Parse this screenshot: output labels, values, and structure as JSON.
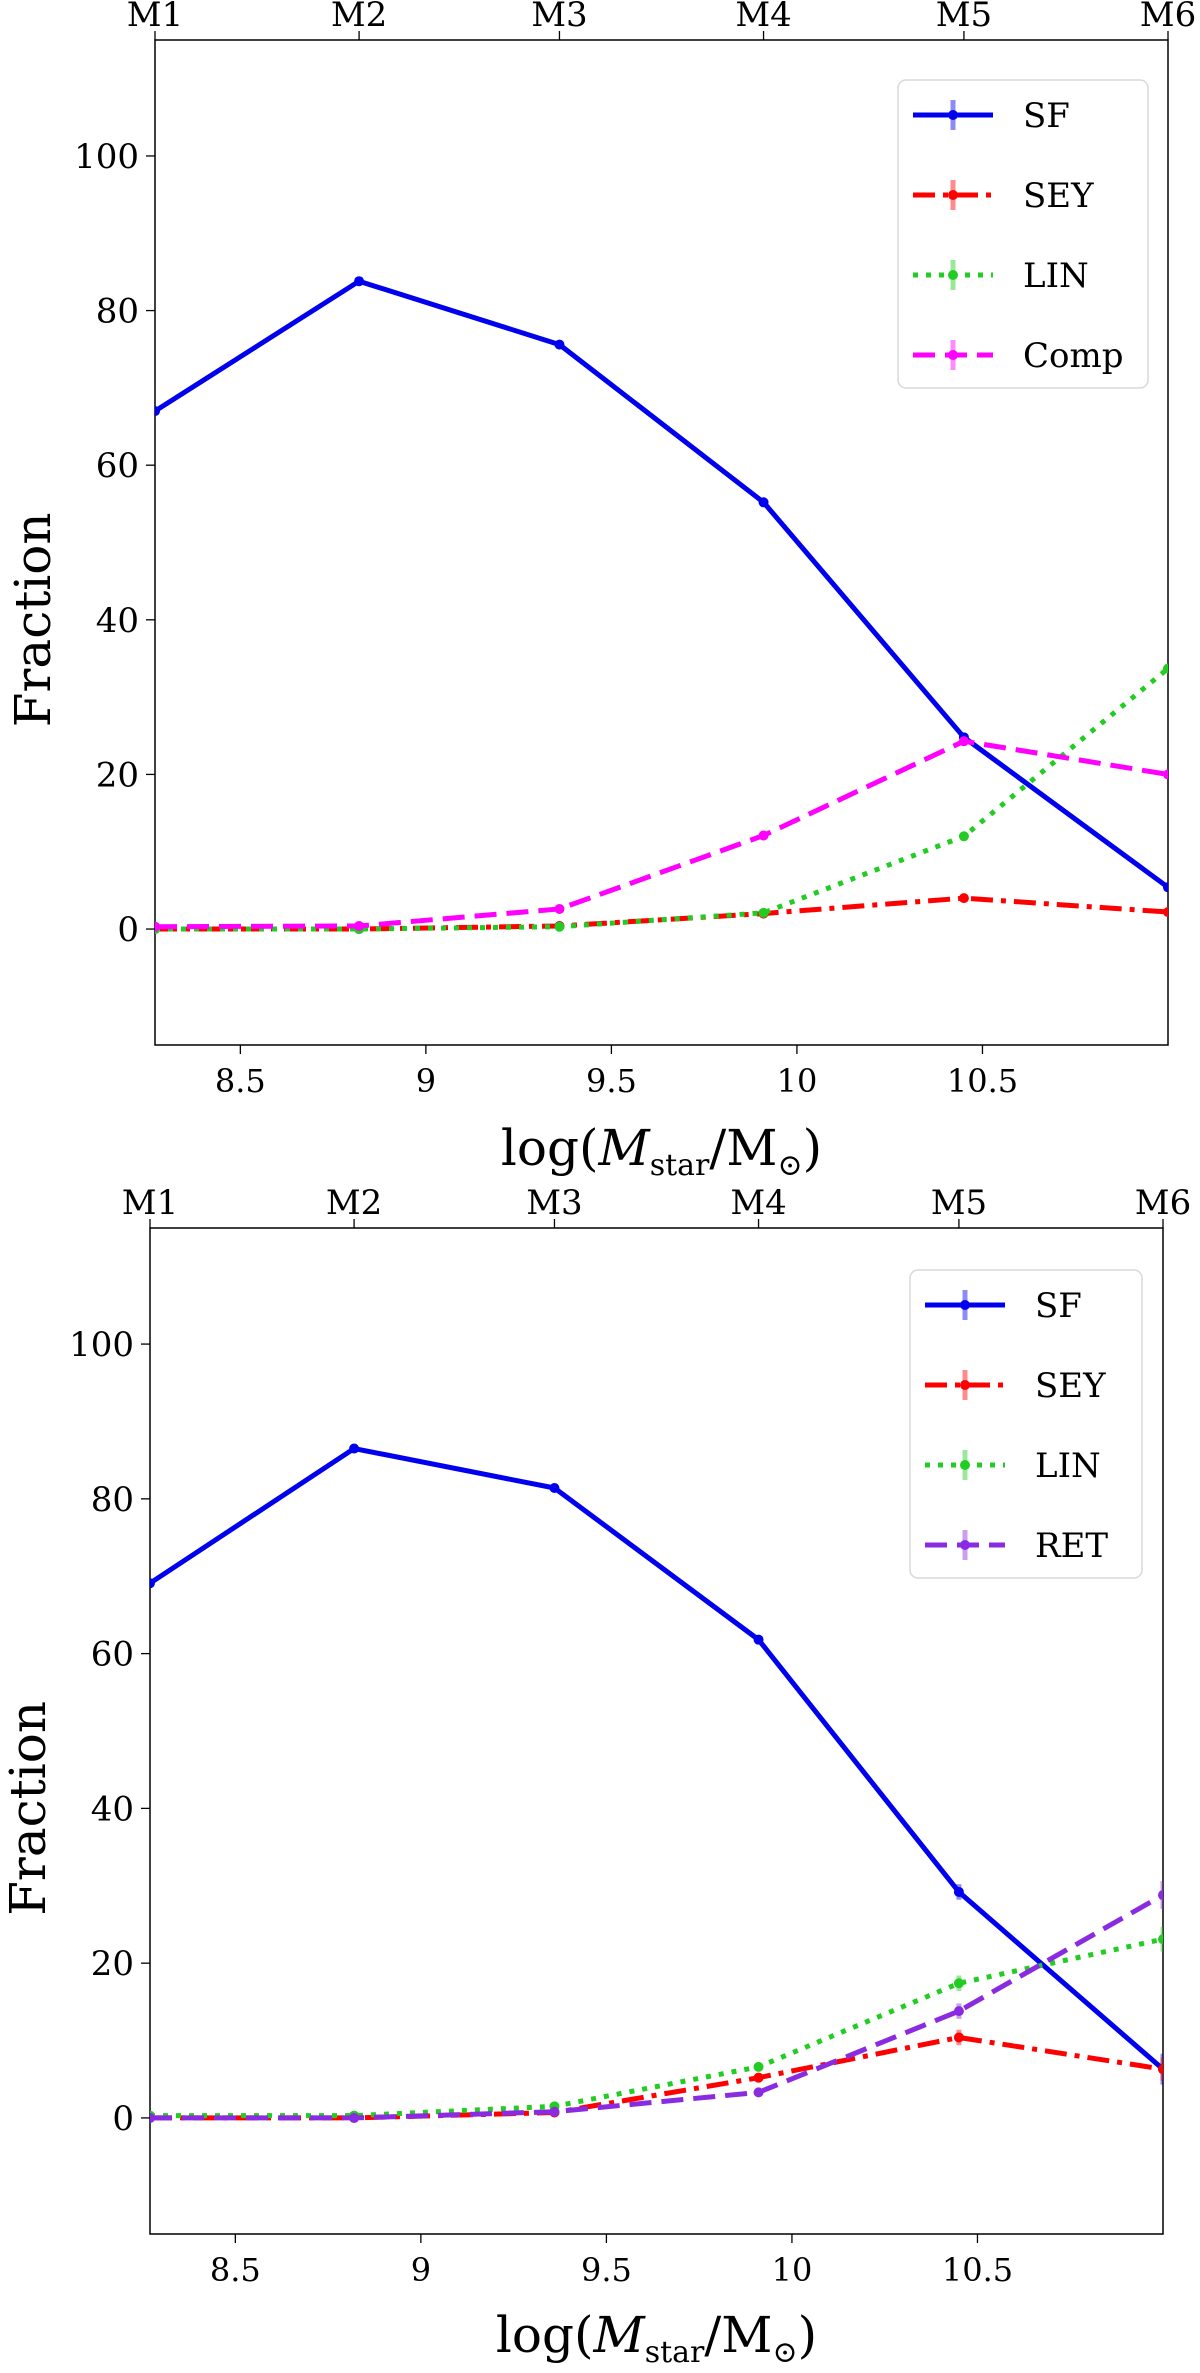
{
  "chart_data": [
    {
      "type": "line",
      "ylabel": "Fraction",
      "xlabel": "log(M_star/M_sun)",
      "xlabel_parts": {
        "prefix": "log(",
        "symbol": "M",
        "sub": "star",
        "slash": "/M",
        "sub2": "⊙",
        "suffix": ")"
      },
      "xlim": [
        8.27,
        11.0
      ],
      "ylim": [
        -15,
        115
      ],
      "x_ticks": [
        8.5,
        9,
        9.5,
        10,
        10.5
      ],
      "x_tick_labels": [
        "8.5",
        "9",
        "9.5",
        "10",
        "10.5"
      ],
      "y_ticks": [
        0,
        20,
        40,
        60,
        80,
        100
      ],
      "y_tick_labels": [
        "0",
        "20",
        "40",
        "60",
        "80",
        "100"
      ],
      "top_ticks": [
        8.27,
        8.82,
        9.36,
        9.91,
        10.45,
        11.0
      ],
      "top_tick_labels": [
        "M1",
        "M2",
        "M3",
        "M4",
        "M5",
        "M6"
      ],
      "x": [
        8.27,
        8.82,
        9.36,
        9.91,
        10.45,
        11.0
      ],
      "legend_position": "upper-right",
      "series": [
        {
          "name": "SF",
          "color": "#0000ee",
          "style": "solid",
          "values": [
            67.0,
            83.8,
            75.6,
            55.2,
            24.8,
            5.4
          ]
        },
        {
          "name": "SEY",
          "color": "#ff0000",
          "style": "dashdot",
          "values": [
            0.0,
            0.0,
            0.4,
            2.0,
            4.0,
            2.2
          ]
        },
        {
          "name": "LIN",
          "color": "#22cc22",
          "style": "dotted",
          "values": [
            0.0,
            0.0,
            0.3,
            2.1,
            12.0,
            33.7
          ]
        },
        {
          "name": "Comp",
          "color": "#ff00ff",
          "style": "dashed",
          "values": [
            0.3,
            0.4,
            2.6,
            12.1,
            24.3,
            20.0
          ]
        }
      ]
    },
    {
      "type": "line",
      "ylabel": "Fraction",
      "xlabel": "log(M_star/M_sun)",
      "xlabel_parts": {
        "prefix": "log(",
        "symbol": "M",
        "sub": "star",
        "slash": "/M",
        "sub2": "⊙",
        "suffix": ")"
      },
      "xlim": [
        8.27,
        11.0
      ],
      "ylim": [
        -15,
        115
      ],
      "x_ticks": [
        8.5,
        9,
        9.5,
        10,
        10.5
      ],
      "x_tick_labels": [
        "8.5",
        "9",
        "9.5",
        "10",
        "10.5"
      ],
      "y_ticks": [
        0,
        20,
        40,
        60,
        80,
        100
      ],
      "y_tick_labels": [
        "0",
        "20",
        "40",
        "60",
        "80",
        "100"
      ],
      "top_ticks": [
        8.27,
        8.82,
        9.36,
        9.91,
        10.45,
        11.0
      ],
      "top_tick_labels": [
        "M1",
        "M2",
        "M3",
        "M4",
        "M5",
        "M6"
      ],
      "x": [
        8.27,
        8.82,
        9.36,
        9.91,
        10.45,
        11.0
      ],
      "legend_position": "upper-right",
      "series": [
        {
          "name": "SF",
          "color": "#0000ee",
          "style": "solid",
          "values": [
            69.1,
            86.5,
            81.4,
            61.8,
            29.2,
            6.3
          ],
          "errors": [
            0,
            0,
            0,
            0,
            1.0,
            2.0
          ]
        },
        {
          "name": "SEY",
          "color": "#ff0000",
          "style": "dashdot",
          "values": [
            0.0,
            0.0,
            0.7,
            5.2,
            10.4,
            6.3
          ],
          "errors": [
            0,
            0,
            0,
            0.6,
            1.0,
            1.5
          ]
        },
        {
          "name": "LIN",
          "color": "#22cc22",
          "style": "dotted",
          "values": [
            0.3,
            0.3,
            1.5,
            6.6,
            17.4,
            23.1
          ],
          "errors": [
            0,
            0,
            0,
            0.5,
            1.0,
            1.6
          ]
        },
        {
          "name": "RET",
          "color": "#8a2be2",
          "style": "dashed",
          "values": [
            0.0,
            0.0,
            0.8,
            3.3,
            13.8,
            28.8
          ],
          "errors": [
            0,
            0,
            0,
            0.5,
            1.0,
            1.8
          ]
        }
      ]
    }
  ]
}
